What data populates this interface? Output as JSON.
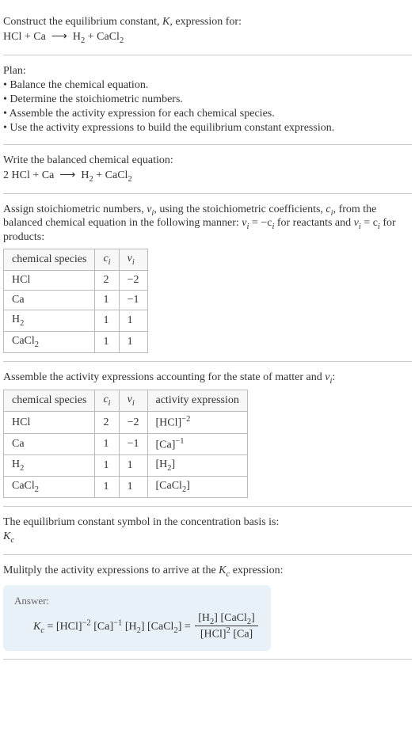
{
  "header": {
    "prompt": "Construct the equilibrium constant, ",
    "Ksym": "K",
    "prompt2": ", expression for:",
    "equation_lhs": "HCl + Ca",
    "arrow": "⟶",
    "equation_rhs_h2": "H",
    "equation_rhs_cacl2": " + CaCl"
  },
  "plan": {
    "title": "Plan:",
    "b1": "• Balance the chemical equation.",
    "b2": "• Determine the stoichiometric numbers.",
    "b3": "• Assemble the activity expression for each chemical species.",
    "b4": "• Use the activity expressions to build the equilibrium constant expression."
  },
  "balanced": {
    "title": "Write the balanced chemical equation:",
    "lhs": "2 HCl + Ca",
    "arrow": "⟶",
    "rhs_h2": "H",
    "rhs_plus_cacl": " + CaCl"
  },
  "assign": {
    "text1": "Assign stoichiometric numbers, ",
    "nu": "ν",
    "text2": ", using the stoichiometric coefficients, ",
    "c": "c",
    "text3": ", from the balanced chemical equation in the following manner: ",
    "rel1a": "ν",
    "rel1b": " = −c",
    "text4": " for reactants and ",
    "rel2a": "ν",
    "rel2b": " = c",
    "text5": " for products:",
    "table": {
      "h1": "chemical species",
      "h2": "c",
      "h3": "ν",
      "rows": [
        {
          "sp": "HCl",
          "c": "2",
          "v": "−2"
        },
        {
          "sp": "Ca",
          "c": "1",
          "v": "−1"
        },
        {
          "sp": "H",
          "sub": "2",
          "c": "1",
          "v": "1"
        },
        {
          "sp": "CaCl",
          "sub": "2",
          "c": "1",
          "v": "1"
        }
      ]
    }
  },
  "assemble": {
    "title": "Assemble the activity expressions accounting for the state of matter and ",
    "nu": "ν",
    "colon": ":",
    "table": {
      "h1": "chemical species",
      "h2": "c",
      "h3": "ν",
      "h4": "activity expression",
      "rows": [
        {
          "sp": "HCl",
          "c": "2",
          "v": "−2",
          "act": "[HCl]",
          "exp": "−2"
        },
        {
          "sp": "Ca",
          "c": "1",
          "v": "−1",
          "act": "[Ca]",
          "exp": "−1"
        },
        {
          "sp": "H",
          "sub": "2",
          "c": "1",
          "v": "1",
          "act": "[H",
          "asub": "2",
          "act2": "]"
        },
        {
          "sp": "CaCl",
          "sub": "2",
          "c": "1",
          "v": "1",
          "act": "[CaCl",
          "asub": "2",
          "act2": "]"
        }
      ]
    }
  },
  "symbol": {
    "text": "The equilibrium constant symbol in the concentration basis is:",
    "K": "K",
    "sub": "c"
  },
  "multiply": {
    "text1": "Mulitply the activity expressions to arrive at the ",
    "K": "K",
    "sub": "c",
    "text2": " expression:"
  },
  "answer": {
    "label": "Answer:",
    "lhs_K": "K",
    "lhs_sub": "c",
    "eq": " = [HCl]",
    "e1": "−2",
    "mid1": " [Ca]",
    "e2": "−1",
    "mid2": " [H",
    "mid3": "] [CaCl",
    "mid4": "] = ",
    "num1": "[H",
    "num2": "] [CaCl",
    "num3": "]",
    "den1": "[HCl]",
    "de1": "2",
    "den2": " [Ca]"
  }
}
